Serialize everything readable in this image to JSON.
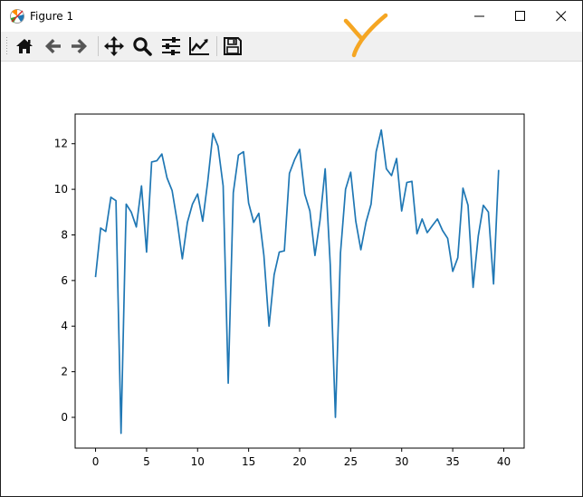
{
  "window": {
    "title": "Figure 1",
    "icons": {
      "app": "matplotlib-icon",
      "minimize": "minimize-icon",
      "maximize": "maximize-icon",
      "close": "close-icon"
    }
  },
  "toolbar": {
    "buttons": [
      {
        "name": "home",
        "icon": "home-icon"
      },
      {
        "name": "back",
        "icon": "arrow-left-icon"
      },
      {
        "name": "forward",
        "icon": "arrow-right-icon"
      },
      {
        "name": "pan",
        "icon": "move-icon"
      },
      {
        "name": "zoom",
        "icon": "magnifier-icon"
      },
      {
        "name": "subplots",
        "icon": "sliders-icon"
      },
      {
        "name": "customize",
        "icon": "line-chart-icon"
      },
      {
        "name": "save",
        "icon": "floppy-disk-icon"
      }
    ]
  },
  "annotation": {
    "color": "#f5a623"
  },
  "chart_data": {
    "type": "line",
    "title": "",
    "xlabel": "",
    "ylabel": "",
    "xlim": [
      -2,
      42
    ],
    "ylim": [
      -1.35,
      13.3
    ],
    "xticks": [
      0,
      5,
      10,
      15,
      20,
      25,
      30,
      35,
      40
    ],
    "yticks": [
      0,
      2,
      4,
      6,
      8,
      10,
      12
    ],
    "grid": false,
    "legend": "none",
    "line_color": "#1f77b4",
    "x": [
      0,
      0.5,
      1,
      1.5,
      2,
      2.5,
      3,
      3.5,
      4,
      4.5,
      5,
      5.5,
      6,
      6.5,
      7,
      7.5,
      8,
      8.5,
      9,
      9.5,
      10,
      10.5,
      11,
      11.5,
      12,
      12.5,
      13,
      13.5,
      14,
      14.5,
      15,
      15.5,
      16,
      16.5,
      17,
      17.5,
      18,
      18.5,
      19,
      19.5,
      20,
      20.5,
      21,
      21.5,
      22,
      22.5,
      23,
      23.5,
      24,
      24.5,
      25,
      25.5,
      26,
      26.5,
      27,
      27.5,
      28,
      28.5,
      29,
      29.5,
      30,
      30.5,
      31,
      31.5,
      32,
      32.5,
      33,
      33.5,
      34,
      34.5,
      35,
      35.5,
      36,
      36.5,
      37,
      37.5,
      38,
      38.5,
      39,
      39.5
    ],
    "y": [
      6.15,
      8.3,
      8.15,
      9.65,
      9.5,
      -0.7,
      9.35,
      9.0,
      8.35,
      10.15,
      7.25,
      11.2,
      11.25,
      11.55,
      10.5,
      9.95,
      8.6,
      6.95,
      8.55,
      9.35,
      9.8,
      8.6,
      10.35,
      12.45,
      11.9,
      10.15,
      1.5,
      9.85,
      11.5,
      11.65,
      9.4,
      8.55,
      8.95,
      7.1,
      4.0,
      6.25,
      7.25,
      7.3,
      10.7,
      11.3,
      11.75,
      9.8,
      9.05,
      7.1,
      8.65,
      10.9,
      6.7,
      0.0,
      7.2,
      10.0,
      10.75,
      8.6,
      7.35,
      8.55,
      9.35,
      11.65,
      12.6,
      10.9,
      10.6,
      11.35,
      9.05,
      10.3,
      10.35,
      8.05,
      8.7,
      8.1,
      8.4,
      8.7,
      8.2,
      7.85,
      6.4,
      7.0,
      10.05,
      9.3,
      5.7,
      7.95,
      9.3,
      9.0,
      5.85,
      10.85
    ]
  }
}
